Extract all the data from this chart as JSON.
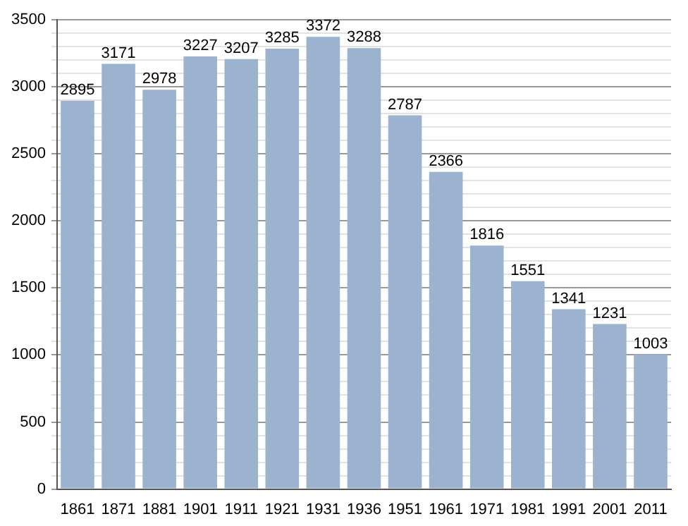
{
  "chart_data": {
    "type": "bar",
    "categories": [
      "1861",
      "1871",
      "1881",
      "1901",
      "1911",
      "1921",
      "1931",
      "1936",
      "1951",
      "1961",
      "1971",
      "1981",
      "1991",
      "2001",
      "2011"
    ],
    "values": [
      2895,
      3171,
      2978,
      3227,
      3207,
      3285,
      3372,
      3288,
      2787,
      2366,
      1816,
      1551,
      1341,
      1231,
      1003
    ],
    "color": "#9bb3cf",
    "ylim": [
      0,
      3500
    ],
    "yticks": [
      0,
      {
        "value": 100,
        "label": null
      },
      {
        "value": 200,
        "label": null
      },
      {
        "value": 300,
        "label": null
      },
      {
        "value": 400,
        "label": null
      },
      500,
      {
        "value": 600,
        "label": null
      },
      {
        "value": 700,
        "label": null
      },
      {
        "value": 800,
        "label": null
      },
      {
        "value": 900,
        "label": null
      },
      1000,
      {
        "value": 1100,
        "label": null
      },
      {
        "value": 1200,
        "label": null
      },
      {
        "value": 1300,
        "label": null
      },
      {
        "value": 1400,
        "label": null
      },
      1500,
      {
        "value": 1600,
        "label": null
      },
      {
        "value": 1700,
        "label": null
      },
      {
        "value": 1800,
        "label": null
      },
      {
        "value": 1900,
        "label": null
      },
      2000,
      {
        "value": 2100,
        "label": null
      },
      {
        "value": 2200,
        "label": null
      },
      {
        "value": 2300,
        "label": null
      },
      {
        "value": 2400,
        "label": null
      },
      2500,
      {
        "value": 2600,
        "label": null
      },
      {
        "value": 2700,
        "label": null
      },
      {
        "value": 2800,
        "label": null
      },
      {
        "value": 2900,
        "label": null
      },
      3000,
      {
        "value": 3100,
        "label": null
      },
      {
        "value": 3200,
        "label": null
      },
      {
        "value": 3300,
        "label": null
      },
      {
        "value": 3400,
        "label": null
      },
      3500
    ],
    "grid": "y",
    "data_labels": true
  }
}
